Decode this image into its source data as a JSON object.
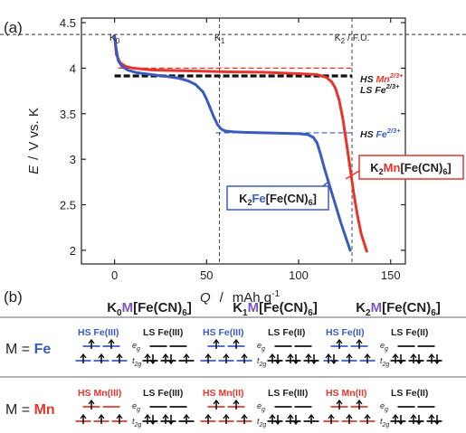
{
  "panel_a_label": "(a)",
  "panel_b_label": "(b)",
  "chart_data": {
    "type": "line",
    "xlabel_sym": "Q",
    "xlabel_unit": "mAh g",
    "xlabel_exp": "-1",
    "ylabel_sym": "E",
    "ylabel_unit": "V vs. K",
    "xlim": [
      -18,
      158
    ],
    "ylim": [
      1.85,
      4.55
    ],
    "xticks": [
      0,
      50,
      100,
      150
    ],
    "yticks": [
      2,
      2.5,
      3,
      3.5,
      4,
      4.5
    ],
    "xtick_labels": [
      "0",
      "50",
      "100",
      "150"
    ],
    "ytick_labels": [
      "2",
      "2.5",
      "3",
      "3.5",
      "4",
      "4.5"
    ],
    "grid": false,
    "series": [
      {
        "name": "K2Fe[Fe(CN)6]",
        "color": "#3a5bbf",
        "x": [
          0,
          1,
          2,
          4,
          7,
          12,
          20,
          28,
          35,
          40,
          44,
          48,
          50,
          52,
          54,
          56,
          58,
          60,
          65,
          70,
          80,
          90,
          100,
          105,
          108,
          110,
          112,
          114,
          117,
          120,
          123,
          126,
          128
        ],
        "y": [
          4.35,
          4.2,
          4.08,
          4.02,
          3.98,
          3.95,
          3.93,
          3.91,
          3.89,
          3.86,
          3.82,
          3.74,
          3.66,
          3.56,
          3.46,
          3.38,
          3.33,
          3.31,
          3.3,
          3.295,
          3.29,
          3.285,
          3.28,
          3.27,
          3.24,
          3.18,
          3.05,
          2.9,
          2.7,
          2.5,
          2.3,
          2.12,
          2.0
        ]
      },
      {
        "name": "K2Mn[Fe(CN)6]",
        "color": "#e8342b",
        "x": [
          0,
          1,
          3,
          6,
          10,
          20,
          40,
          60,
          80,
          100,
          110,
          115,
          118,
          120,
          122,
          124,
          126,
          128,
          130,
          132,
          134,
          137
        ],
        "y": [
          4.35,
          4.15,
          4.06,
          4.02,
          4.0,
          3.98,
          3.97,
          3.96,
          3.955,
          3.94,
          3.93,
          3.9,
          3.85,
          3.78,
          3.65,
          3.45,
          3.18,
          2.9,
          2.62,
          2.38,
          2.18,
          1.99
        ]
      }
    ],
    "guides": {
      "v_lines_x": [
        57,
        129
      ],
      "h_line_y": 4.37,
      "hs_mn_y": 4.0,
      "ls_fe_y": 3.915,
      "hs_fe_y": 3.29
    },
    "k_labels": [
      {
        "text": "K",
        "sub": "0",
        "x": 0
      },
      {
        "text": "K",
        "sub": "1",
        "x": 57
      },
      {
        "text": "K",
        "sub": "2",
        "extra": " / F.U.",
        "x": 129
      }
    ],
    "annotations": {
      "hs_mn": {
        "pre": "HS ",
        "el": "Mn",
        "sup": "2/3+"
      },
      "ls_fe": {
        "pre": "LS ",
        "el": "Fe",
        "sup": "2/3+"
      },
      "hs_fe": {
        "pre": "HS ",
        "el": "Fe",
        "sup": "2/3+"
      },
      "box_mn": {
        "k": "K",
        "ks": "2",
        "m": "Mn",
        "rest": "[Fe(CN)",
        "sub6": "6",
        "end": "]"
      },
      "box_fe": {
        "k": "K",
        "ks": "2",
        "m": "Fe",
        "rest": "[Fe(CN)",
        "sub6": "6",
        "end": "]"
      }
    }
  },
  "panel_b": {
    "headers": [
      {
        "k": "K",
        "ks": "0",
        "m": "M",
        "rest": "[Fe(CN)",
        "sub6": "6",
        "end": "]"
      },
      {
        "k": "K",
        "ks": "1",
        "m": "M",
        "rest": "[Fe(CN)",
        "sub6": "6",
        "end": "]"
      },
      {
        "k": "K",
        "ks": "2",
        "m": "M",
        "rest": "[Fe(CN)",
        "sub6": "6",
        "end": "]"
      }
    ],
    "rows": [
      {
        "pre": "M = ",
        "metal": "Fe",
        "metal_color": "#3a5bbf",
        "groups": [
          {
            "hs": "HS Fe(III)",
            "ls": "LS Fe(III)",
            "hs_color": "#3a5bbf"
          },
          {
            "hs": "HS Fe(III)",
            "ls": "LS Fe(II)",
            "hs_color": "#3a5bbf"
          },
          {
            "hs": "HS Fe(II)",
            "ls": "LS Fe(II)",
            "hs_color": "#3a5bbf"
          }
        ]
      },
      {
        "pre": "M = ",
        "metal": "Mn",
        "metal_color": "#e8342b",
        "groups": [
          {
            "hs": "HS Mn(III)",
            "ls": "LS Fe(III)",
            "hs_color": "#e8342b"
          },
          {
            "hs": "HS Mn(II)",
            "ls": "LS Fe(III)",
            "hs_color": "#e8342b"
          },
          {
            "hs": "HS Mn(II)",
            "ls": "LS Fe(II)",
            "hs_color": "#e8342b"
          }
        ]
      }
    ],
    "orbital_labels": {
      "eg": "e",
      "eg_sub": "g",
      "t2g": "t",
      "t2g_sub": "2g"
    }
  }
}
